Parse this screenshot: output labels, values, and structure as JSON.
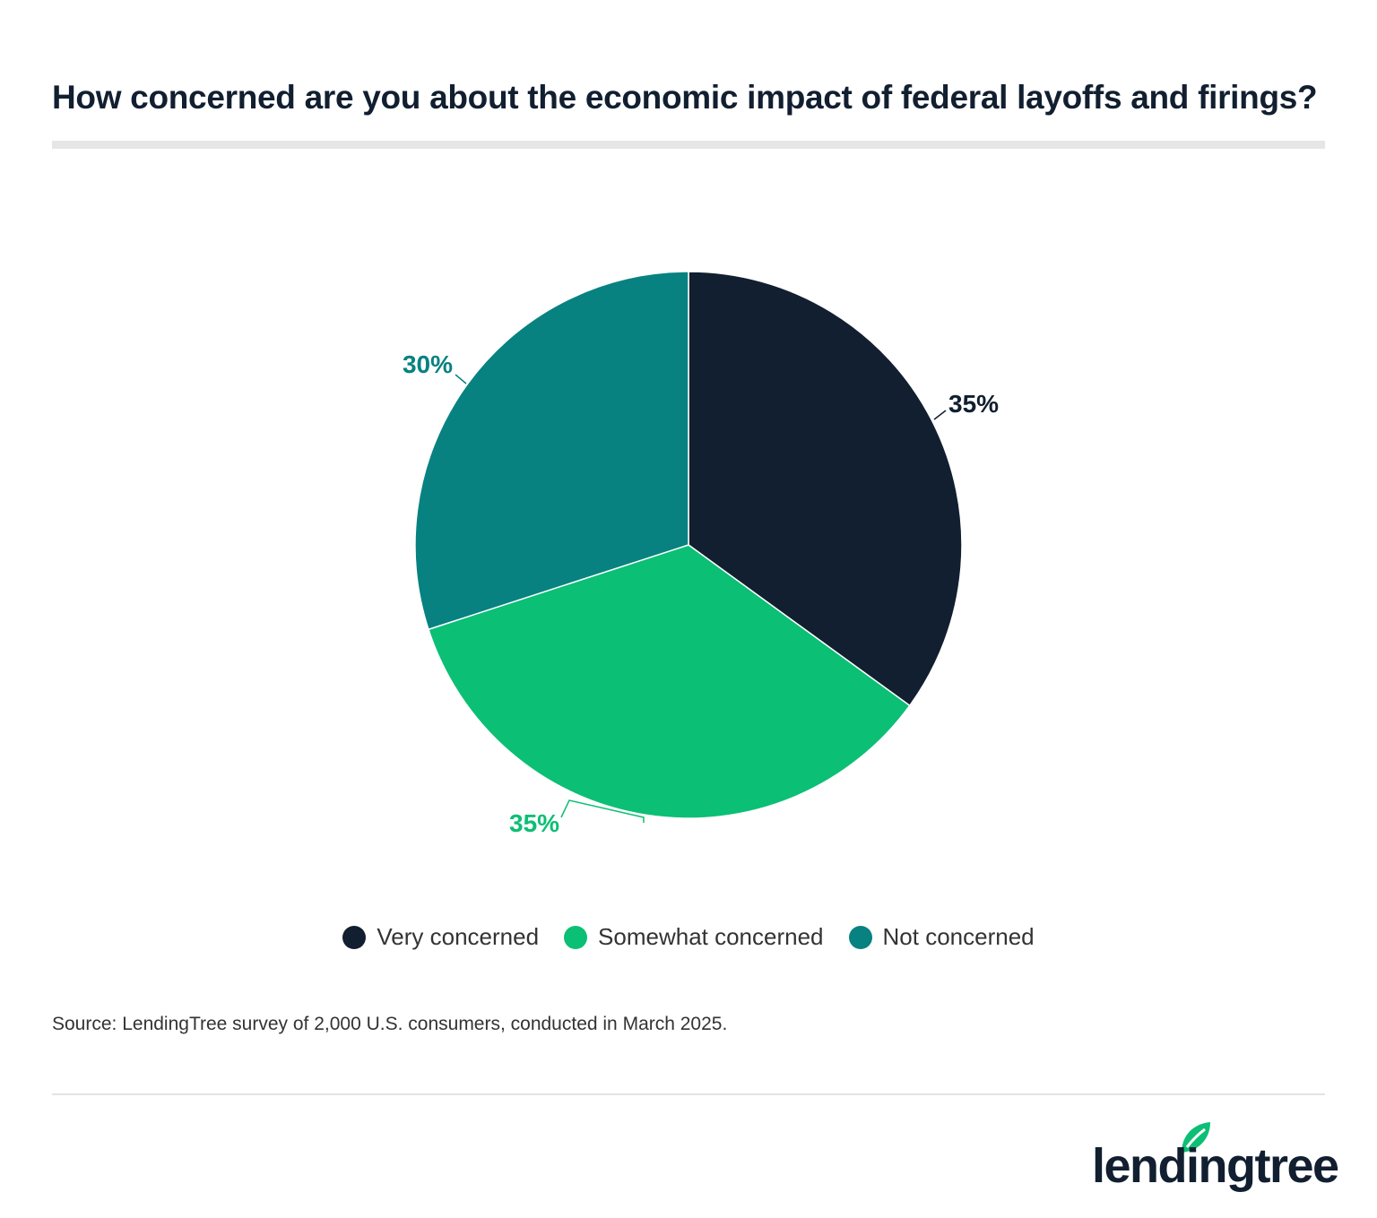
{
  "chart_data": {
    "type": "pie",
    "title": "How concerned are you about the economic impact of federal layoffs and firings?",
    "start_angle": "top, clockwise",
    "slices": [
      {
        "name": "Very concerned",
        "value": 35,
        "label": "35%",
        "color": "#111f30"
      },
      {
        "name": "Somewhat concerned",
        "value": 35,
        "label": "35%",
        "color": "#0bbf74"
      },
      {
        "name": "Not concerned",
        "value": 30,
        "label": "30%",
        "color": "#088181"
      }
    ],
    "legend_placement": "bottom"
  },
  "source": "Source: LendingTree survey of 2,000 U.S. consumers, conducted in March 2025.",
  "logo": {
    "text": "lendingtree",
    "icon": "leaf-icon"
  }
}
